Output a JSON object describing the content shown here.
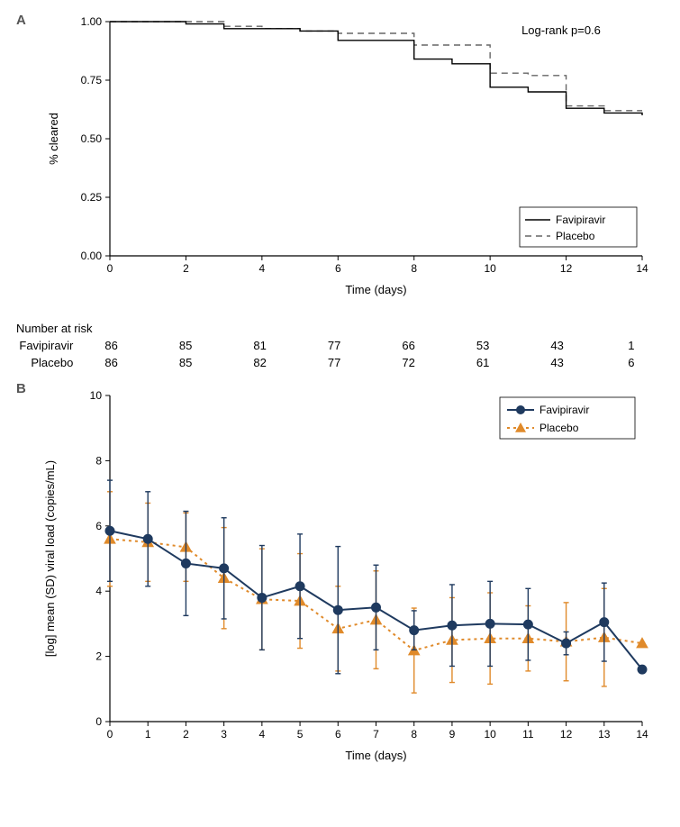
{
  "panelA": {
    "label": "A",
    "type": "kaplan-meier",
    "xlim": [
      0,
      14
    ],
    "ylim": [
      0,
      1.0
    ],
    "xticks": [
      0,
      2,
      4,
      6,
      8,
      10,
      12,
      14
    ],
    "yticks": [
      0.0,
      0.25,
      0.5,
      0.75,
      1.0
    ],
    "xlabel": "Time (days)",
    "ylabel": "% cleared",
    "pvalue_text": "Log-rank p=0.6",
    "colors": {
      "favipiravir": "#000000",
      "placebo": "#666666",
      "axis": "#000000",
      "background": "#ffffff"
    },
    "line_styles": {
      "favipiravir": "solid",
      "placebo": "dashed"
    },
    "line_width": 1.4,
    "legend": {
      "position": "bottom-right",
      "items": [
        "Favipiravir",
        "Placebo"
      ]
    },
    "series": {
      "favipiravir": [
        [
          0,
          1.0
        ],
        [
          1,
          1.0
        ],
        [
          2,
          0.99
        ],
        [
          3,
          0.97
        ],
        [
          4,
          0.97
        ],
        [
          5,
          0.96
        ],
        [
          6,
          0.92
        ],
        [
          7,
          0.92
        ],
        [
          8,
          0.84
        ],
        [
          9,
          0.82
        ],
        [
          10,
          0.72
        ],
        [
          11,
          0.7
        ],
        [
          12,
          0.63
        ],
        [
          13,
          0.61
        ],
        [
          14,
          0.6
        ]
      ],
      "placebo": [
        [
          0,
          1.0
        ],
        [
          1,
          1.0
        ],
        [
          2,
          1.0
        ],
        [
          3,
          0.98
        ],
        [
          4,
          0.97
        ],
        [
          5,
          0.96
        ],
        [
          6,
          0.95
        ],
        [
          7,
          0.95
        ],
        [
          8,
          0.9
        ],
        [
          9,
          0.9
        ],
        [
          10,
          0.78
        ],
        [
          11,
          0.77
        ],
        [
          12,
          0.64
        ],
        [
          13,
          0.62
        ],
        [
          14,
          0.62
        ]
      ]
    },
    "risk_table": {
      "title": "Number at risk",
      "timepoints": [
        0,
        2,
        4,
        6,
        8,
        10,
        12,
        14
      ],
      "rows": [
        {
          "label": "Favipiravir",
          "values": [
            86,
            85,
            81,
            77,
            66,
            53,
            43,
            1
          ]
        },
        {
          "label": "Placebo",
          "values": [
            86,
            85,
            82,
            77,
            72,
            61,
            43,
            6
          ]
        }
      ]
    }
  },
  "panelB": {
    "label": "B",
    "type": "line-errorbar",
    "xlim": [
      0,
      14
    ],
    "ylim": [
      0,
      10
    ],
    "xticks": [
      0,
      1,
      2,
      3,
      4,
      5,
      6,
      7,
      8,
      9,
      10,
      11,
      12,
      13,
      14
    ],
    "yticks": [
      0,
      2,
      4,
      6,
      8,
      10
    ],
    "xlabel": "Time (days)",
    "ylabel": "[log] mean (SD) viral load (copies/mL)",
    "colors": {
      "favipiravir": "#1f3a5f",
      "placebo": "#e08a2a",
      "axis": "#000000",
      "background": "#ffffff"
    },
    "line_styles": {
      "favipiravir": "solid",
      "placebo": "dotted"
    },
    "markers": {
      "favipiravir": "circle",
      "placebo": "triangle"
    },
    "marker_size": 5,
    "line_width": 2,
    "errorbar_cap": 6,
    "legend": {
      "position": "top-right",
      "items": [
        "Favipiravir",
        "Placebo"
      ]
    },
    "series": {
      "favipiravir": {
        "x": [
          0,
          1,
          2,
          3,
          4,
          5,
          6,
          7,
          8,
          9,
          10,
          11,
          12,
          13,
          14
        ],
        "y": [
          5.85,
          5.6,
          4.85,
          4.7,
          3.8,
          4.15,
          3.42,
          3.5,
          2.8,
          2.95,
          3.0,
          2.98,
          2.4,
          3.05,
          1.6
        ],
        "sd": [
          1.55,
          1.45,
          1.6,
          1.55,
          1.6,
          1.6,
          1.95,
          1.3,
          0.6,
          1.25,
          1.3,
          1.1,
          0.35,
          1.2,
          0.1
        ]
      },
      "placebo": {
        "x": [
          0,
          1,
          2,
          3,
          4,
          5,
          6,
          7,
          8,
          9,
          10,
          11,
          12,
          13,
          14
        ],
        "y": [
          5.6,
          5.5,
          5.35,
          4.4,
          3.75,
          3.7,
          2.85,
          3.12,
          2.18,
          2.5,
          2.55,
          2.55,
          2.45,
          2.58,
          2.4
        ],
        "sd": [
          1.45,
          1.2,
          1.05,
          1.55,
          1.55,
          1.45,
          1.3,
          1.5,
          1.3,
          1.3,
          1.4,
          1.0,
          1.2,
          1.5,
          0.0
        ]
      }
    }
  },
  "fonts": {
    "axis_label_pt": 13,
    "tick_label_pt": 12,
    "legend_pt": 12,
    "panel_label_pt": 15
  }
}
